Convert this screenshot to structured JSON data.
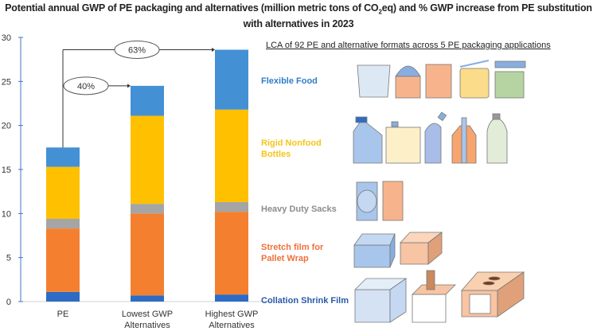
{
  "title_part1": "Potential annual GWP of PE packaging and alternatives (million metric tons of CO",
  "title_sub": "2",
  "title_part2": "eq) and % GWP increase from PE substitution with alternatives in 2023",
  "heading": "LCA of 92  PE and alternative formats across 5 PE packaging applications",
  "chart_data": {
    "type": "bar",
    "stacked": true,
    "title": "Potential annual GWP of PE packaging and alternatives (million metric tons of CO2eq) and % GWP increase from PE substitution with alternatives in 2023",
    "xlabel": "",
    "ylabel": "",
    "ylim": [
      0,
      30
    ],
    "yticks": [
      "0",
      "5",
      "10",
      "15",
      "20",
      "25",
      "30"
    ],
    "categories": [
      "PE",
      "Lowest GWP Alternatives",
      "Highest GWP Alternatives"
    ],
    "category_lines": [
      [
        "PE"
      ],
      [
        "Lowest GWP",
        "Alternatives"
      ],
      [
        "Highest GWP",
        "Alternatives"
      ]
    ],
    "series": [
      {
        "name": "Collation Shrink Film",
        "color": "#2e6bc4",
        "values": [
          1.1,
          0.7,
          0.8
        ]
      },
      {
        "name": "Stretch film for Pallet Wrap",
        "color": "#f4802f",
        "values": [
          7.2,
          9.3,
          9.4
        ]
      },
      {
        "name": "Heavy Duty Sacks",
        "color": "#a5a5a5",
        "values": [
          1.1,
          1.1,
          1.1
        ]
      },
      {
        "name": "Rigid Nonfood Bottles",
        "color": "#ffc000",
        "values": [
          5.9,
          10.0,
          10.5
        ]
      },
      {
        "name": "Flexible Food",
        "color": "#4490d4",
        "values": [
          2.2,
          3.4,
          6.8
        ]
      }
    ],
    "annotations": [
      {
        "text": "63%",
        "from": "PE",
        "to": "Highest GWP Alternatives"
      },
      {
        "text": "40%",
        "from": "PE",
        "to": "Lowest GWP Alternatives"
      }
    ],
    "legend": [
      {
        "lines": [
          "Flexible Food"
        ],
        "color": "#2e7dc9"
      },
      {
        "lines": [
          "Rigid Nonfood",
          "Bottles"
        ],
        "color": "#f5c518"
      },
      {
        "lines": [
          "Heavy Duty Sacks"
        ],
        "color": "#8c8c8c"
      },
      {
        "lines": [
          "Stretch film for",
          "Pallet Wrap"
        ],
        "color": "#f0703a"
      },
      {
        "lines": [
          "Collation Shrink Film"
        ],
        "color": "#2a5aa8"
      }
    ],
    "legend_placement": "right"
  }
}
